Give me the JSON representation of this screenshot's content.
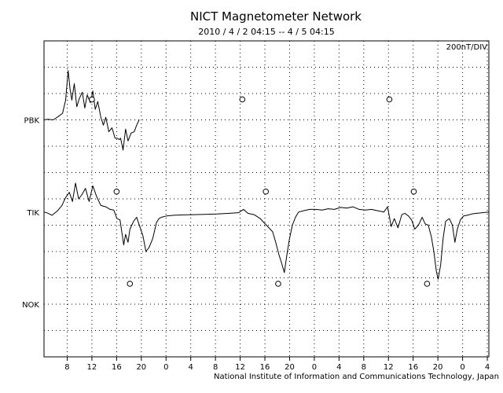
{
  "chart_data": {
    "type": "line",
    "title": "NICT Magnetometer Network",
    "subtitle": "2010 / 4 / 2   04:15 -- 4 / 5   04:15",
    "scale_label": "200nT/DIV",
    "footer": "National Institute of Information and Communications Technology, Japan",
    "x_unit": "hours from 2010/4/2 04:15",
    "xlim": [
      0,
      72
    ],
    "x_ticks": [
      {
        "h": 3.75,
        "label": "8"
      },
      {
        "h": 7.75,
        "label": "12"
      },
      {
        "h": 11.75,
        "label": "16"
      },
      {
        "h": 15.75,
        "label": "20"
      },
      {
        "h": 19.75,
        "label": "0"
      },
      {
        "h": 23.75,
        "label": "4"
      },
      {
        "h": 27.75,
        "label": "8"
      },
      {
        "h": 31.75,
        "label": "12"
      },
      {
        "h": 35.75,
        "label": "16"
      },
      {
        "h": 39.75,
        "label": "20"
      },
      {
        "h": 43.75,
        "label": "0"
      },
      {
        "h": 47.75,
        "label": "4"
      },
      {
        "h": 51.75,
        "label": "8"
      },
      {
        "h": 55.75,
        "label": "12"
      },
      {
        "h": 59.75,
        "label": "16"
      },
      {
        "h": 63.75,
        "label": "20"
      },
      {
        "h": 67.75,
        "label": "0"
      },
      {
        "h": 71.75,
        "label": "4"
      }
    ],
    "y_unit": "nT relative to station baseline",
    "y_division_nT": 200,
    "stations": [
      {
        "name": "PBK",
        "label": "PBK",
        "baseline_row": 3,
        "points": [
          [
            0,
            0
          ],
          [
            0.6,
            -5
          ],
          [
            1.5,
            0
          ],
          [
            2.3,
            -25
          ],
          [
            3,
            -50
          ],
          [
            3.5,
            -150
          ],
          [
            3.9,
            -375
          ],
          [
            4.2,
            -240
          ],
          [
            4.5,
            -150
          ],
          [
            4.9,
            -275
          ],
          [
            5.3,
            -100
          ],
          [
            5.7,
            -160
          ],
          [
            6.2,
            -210
          ],
          [
            6.6,
            -90
          ],
          [
            7,
            -190
          ],
          [
            7.5,
            -130
          ],
          [
            7.9,
            -220
          ],
          [
            8.3,
            -80
          ],
          [
            8.7,
            -140
          ],
          [
            9.2,
            -20
          ],
          [
            9.6,
            40
          ],
          [
            10,
            -20
          ],
          [
            10.5,
            90
          ],
          [
            11,
            60
          ],
          [
            11.5,
            140
          ],
          [
            11.9,
            140
          ],
          [
            12.2,
            150
          ],
          [
            12.4,
            140
          ],
          [
            12.8,
            230
          ],
          [
            13.2,
            70
          ],
          [
            13.6,
            160
          ],
          [
            14.1,
            100
          ],
          [
            14.6,
            90
          ],
          [
            15,
            40
          ],
          [
            15.4,
            0
          ]
        ],
        "markers": [
          7.75,
          32.1,
          55.9
        ]
      },
      {
        "name": "TIK",
        "label": "TIK",
        "baseline_row": 6.5,
        "points": [
          [
            0,
            0
          ],
          [
            0.5,
            6
          ],
          [
            1.3,
            25
          ],
          [
            2.2,
            -10
          ],
          [
            2.9,
            -50
          ],
          [
            3.5,
            -110
          ],
          [
            4.1,
            -150
          ],
          [
            4.6,
            -80
          ],
          [
            5.1,
            -220
          ],
          [
            5.6,
            -100
          ],
          [
            6.1,
            -130
          ],
          [
            6.7,
            -180
          ],
          [
            7.3,
            -80
          ],
          [
            7.9,
            -200
          ],
          [
            8.5,
            -120
          ],
          [
            9.2,
            -50
          ],
          [
            10,
            -40
          ],
          [
            10.7,
            -20
          ],
          [
            11.3,
            -15
          ],
          [
            11.8,
            50
          ],
          [
            12.3,
            60
          ],
          [
            12.9,
            250
          ],
          [
            13.2,
            170
          ],
          [
            13.6,
            230
          ],
          [
            13.9,
            130
          ],
          [
            14.5,
            70
          ],
          [
            15,
            40
          ],
          [
            15.5,
            110
          ],
          [
            16,
            180
          ],
          [
            16.5,
            300
          ],
          [
            17,
            270
          ],
          [
            17.6,
            200
          ],
          [
            18.2,
            80
          ],
          [
            18.6,
            50
          ],
          [
            19,
            40
          ],
          [
            19.8,
            30
          ],
          [
            21,
            25
          ],
          [
            22.5,
            22
          ],
          [
            24,
            20
          ],
          [
            26,
            18
          ],
          [
            28,
            15
          ],
          [
            30,
            10
          ],
          [
            31.5,
            5
          ],
          [
            32.3,
            -20
          ],
          [
            33,
            10
          ],
          [
            34,
            20
          ],
          [
            35,
            50
          ],
          [
            36,
            100
          ],
          [
            37,
            150
          ],
          [
            37.5,
            230
          ],
          [
            38,
            320
          ],
          [
            38.4,
            380
          ],
          [
            38.9,
            460
          ],
          [
            39.3,
            330
          ],
          [
            39.7,
            210
          ],
          [
            40.2,
            100
          ],
          [
            40.7,
            40
          ],
          [
            41.2,
            0
          ],
          [
            42,
            -10
          ],
          [
            43,
            -20
          ],
          [
            44,
            -20
          ],
          [
            45,
            -15
          ],
          [
            46,
            -25
          ],
          [
            47,
            -20
          ],
          [
            48,
            -35
          ],
          [
            49,
            -30
          ],
          [
            50,
            -40
          ],
          [
            51,
            -20
          ],
          [
            52,
            -15
          ],
          [
            53,
            -20
          ],
          [
            54,
            -10
          ],
          [
            55,
            0
          ],
          [
            55.6,
            -40
          ],
          [
            56.2,
            110
          ],
          [
            56.7,
            50
          ],
          [
            57.3,
            120
          ],
          [
            57.9,
            20
          ],
          [
            58.4,
            10
          ],
          [
            59,
            30
          ],
          [
            59.5,
            60
          ],
          [
            60,
            130
          ],
          [
            60.6,
            100
          ],
          [
            61.2,
            40
          ],
          [
            61.7,
            90
          ],
          [
            62.2,
            100
          ],
          [
            62.7,
            190
          ],
          [
            63.1,
            300
          ],
          [
            63.5,
            450
          ],
          [
            63.8,
            510
          ],
          [
            64.2,
            400
          ],
          [
            64.6,
            200
          ],
          [
            65,
            70
          ],
          [
            65.6,
            50
          ],
          [
            66.1,
            100
          ],
          [
            66.5,
            230
          ],
          [
            66.9,
            130
          ],
          [
            67.4,
            60
          ],
          [
            67.9,
            30
          ],
          [
            68.5,
            25
          ],
          [
            69.2,
            15
          ],
          [
            70,
            10
          ],
          [
            71,
            5
          ],
          [
            72,
            0
          ]
        ],
        "markers": [
          11.75,
          35.9,
          59.85
        ]
      },
      {
        "name": "NOK",
        "label": "NOK",
        "baseline_row": 10,
        "points": [],
        "markers": [
          13.9,
          37.9,
          62.0
        ]
      }
    ]
  }
}
